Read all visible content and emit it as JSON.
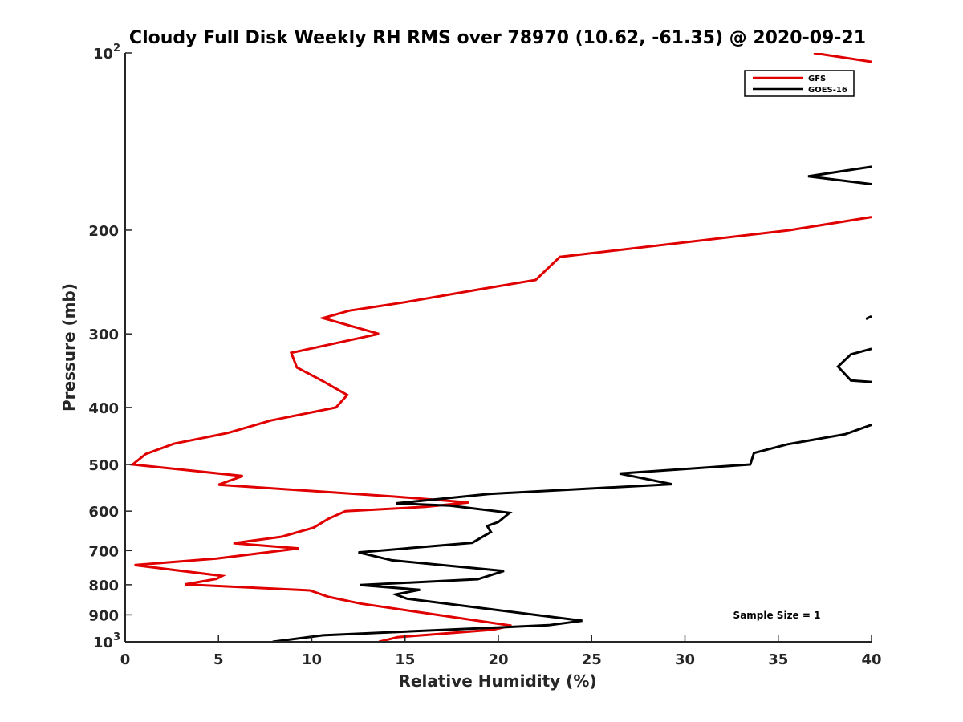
{
  "chart_data": {
    "type": "line",
    "title": "Cloudy Full Disk Weekly RH RMS over 78970 (10.62, -61.35) @ 2020-09-21",
    "xlabel": "Relative Humidity (%)",
    "ylabel": "Pressure (mb)",
    "xlim": [
      0,
      40
    ],
    "ylim": [
      100,
      1000
    ],
    "yscale": "log",
    "y_reversed": true,
    "x_ticks": [
      "0",
      "5",
      "10",
      "15",
      "20",
      "25",
      "30",
      "35",
      "40"
    ],
    "y_ticks": [
      {
        "value": 100,
        "base": "10",
        "exp": "2"
      },
      {
        "value": 200,
        "label": "200"
      },
      {
        "value": 300,
        "label": "300"
      },
      {
        "value": 400,
        "label": "400"
      },
      {
        "value": 500,
        "label": "500"
      },
      {
        "value": 600,
        "label": "600"
      },
      {
        "value": 700,
        "label": "700"
      },
      {
        "value": 800,
        "label": "800"
      },
      {
        "value": 900,
        "label": "900"
      },
      {
        "value": 1000,
        "base": "10",
        "exp": "3"
      }
    ],
    "legend_position": "top-right",
    "annotation": "Sample Size = 1",
    "series": [
      {
        "name": "GFS",
        "color": "#e00000",
        "points": [
          [
            36.9,
            100
          ],
          [
            40.0,
            103.5
          ],
          [
            null,
            null
          ],
          [
            40.0,
            190
          ],
          [
            35.6,
            200
          ],
          [
            23.3,
            222
          ],
          [
            22.0,
            243
          ],
          [
            19.0,
            252
          ],
          [
            15.0,
            265
          ],
          [
            12.0,
            274
          ],
          [
            10.6,
            282
          ],
          [
            13.6,
            300
          ],
          [
            8.9,
            323
          ],
          [
            9.2,
            342
          ],
          [
            10.6,
            361
          ],
          [
            11.9,
            381
          ],
          [
            11.3,
            400
          ],
          [
            7.8,
            421
          ],
          [
            5.5,
            442
          ],
          [
            2.6,
            461
          ],
          [
            1.1,
            480
          ],
          [
            0.4,
            500
          ],
          [
            6.3,
            523
          ],
          [
            5.0,
            541
          ],
          [
            14.5,
            567
          ],
          [
            18.4,
            580
          ],
          [
            16.1,
            590
          ],
          [
            11.8,
            600
          ],
          [
            10.9,
            618
          ],
          [
            10.1,
            640
          ],
          [
            8.4,
            663
          ],
          [
            5.8,
            680
          ],
          [
            9.3,
            694
          ],
          [
            4.9,
            722
          ],
          [
            0.5,
            741
          ],
          [
            5.2,
            773
          ],
          [
            4.9,
            782
          ],
          [
            3.2,
            799
          ],
          [
            9.9,
            818
          ],
          [
            10.9,
            839
          ],
          [
            12.6,
            861
          ],
          [
            20.7,
            939
          ],
          [
            19.7,
            954
          ],
          [
            14.6,
            982
          ],
          [
            13.6,
            1000
          ]
        ]
      },
      {
        "name": "GOES-16",
        "color": "#000000",
        "points": [
          [
            40.0,
            156
          ],
          [
            36.6,
            162
          ],
          [
            40.0,
            167
          ],
          [
            null,
            null
          ],
          [
            40.0,
            280
          ],
          [
            39.7,
            283
          ],
          [
            null,
            null
          ],
          [
            40.0,
            318
          ],
          [
            38.9,
            325
          ],
          [
            38.2,
            341
          ],
          [
            38.9,
            360
          ],
          [
            40.0,
            362
          ],
          [
            null,
            null
          ],
          [
            40.0,
            428
          ],
          [
            38.6,
            444
          ],
          [
            35.5,
            462
          ],
          [
            33.7,
            478
          ],
          [
            33.5,
            500
          ],
          [
            26.5,
            518
          ],
          [
            29.3,
            540
          ],
          [
            19.5,
            561
          ],
          [
            14.5,
            582
          ],
          [
            17.4,
            587
          ],
          [
            20.6,
            604
          ],
          [
            20.0,
            626
          ],
          [
            19.4,
            636
          ],
          [
            19.6,
            651
          ],
          [
            18.6,
            679
          ],
          [
            12.5,
            705
          ],
          [
            14.3,
            727
          ],
          [
            20.3,
            758
          ],
          [
            18.9,
            783
          ],
          [
            12.6,
            801
          ],
          [
            15.8,
            816
          ],
          [
            14.5,
            831
          ],
          [
            15.1,
            845
          ],
          [
            24.5,
            921
          ],
          [
            22.7,
            937
          ],
          [
            10.6,
            975
          ],
          [
            7.9,
            1000
          ]
        ]
      }
    ]
  }
}
